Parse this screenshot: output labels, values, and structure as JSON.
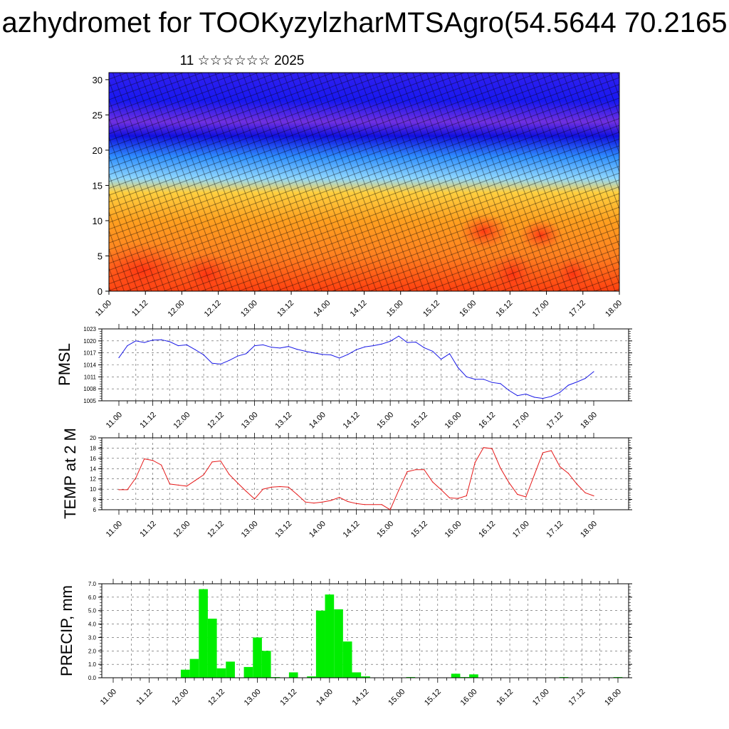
{
  "title": "azhydromet for TOOKyzylzharMTSAgro(54.5644 70.2165",
  "subtitle": "11 ☆☆☆☆☆☆ 2025",
  "colors": {
    "pmsl": "#1a1ae6",
    "temp": "#e61a1a",
    "precip": "#00ee00",
    "grid": "#555555"
  },
  "chart_data": [
    {
      "type": "heatmap",
      "name": "wind-cross-section",
      "y_ticks": [
        "0",
        "5",
        "10",
        "15",
        "20",
        "25",
        "30"
      ],
      "ylim": [
        0,
        31
      ],
      "x_ticks": [
        "11.00",
        "11.12",
        "12.00",
        "12.12",
        "13.00",
        "13.12",
        "14.00",
        "14.12",
        "15.00",
        "15.12",
        "16.00",
        "16.12",
        "17.00",
        "17.12",
        "18.00"
      ],
      "color_by_level": [
        {
          "level": 0,
          "color": "#ff4010"
        },
        {
          "level": 5,
          "color": "#ff8020"
        },
        {
          "level": 10,
          "color": "#ffa020"
        },
        {
          "level": 14,
          "color": "#ffd040"
        },
        {
          "level": 16,
          "color": "#90d8ff"
        },
        {
          "level": 19,
          "color": "#3090ff"
        },
        {
          "level": 22,
          "color": "#1010e0"
        },
        {
          "level": 24,
          "color": "#7030e0"
        },
        {
          "level": 27,
          "color": "#1818f0"
        },
        {
          "level": 31,
          "color": "#3020f0"
        }
      ]
    },
    {
      "type": "line",
      "ylabel": "PMSL",
      "ylim": [
        1005,
        1023
      ],
      "y_ticks": [
        "1005",
        "1008",
        "1011",
        "1014",
        "1017",
        "1020",
        "1023"
      ],
      "x_ticks": [
        "11.00",
        "11.12",
        "12.00",
        "12.12",
        "13.00",
        "13.12",
        "14.00",
        "14.12",
        "15.00",
        "15.12",
        "16.00",
        "16.12",
        "17.00",
        "17.12",
        "18.00"
      ],
      "x_start": 11.0,
      "x_end": 18.0,
      "step_hours": 3,
      "values": [
        1015.8,
        1018.8,
        1020.0,
        1019.6,
        1020.2,
        1020.3,
        1019.8,
        1018.8,
        1019.0,
        1017.8,
        1016.5,
        1014.4,
        1014.2,
        1015.1,
        1016.2,
        1016.8,
        1018.8,
        1019.0,
        1018.4,
        1018.2,
        1018.6,
        1017.9,
        1017.4,
        1017.0,
        1016.6,
        1016.5,
        1015.7,
        1016.6,
        1017.8,
        1018.5,
        1018.8,
        1019.2,
        1019.9,
        1021.2,
        1019.6,
        1019.7,
        1018.3,
        1017.4,
        1015.4,
        1016.8,
        1013.3,
        1011.0,
        1010.4,
        1010.4,
        1009.6,
        1009.3,
        1007.6,
        1006.3,
        1006.7,
        1005.9,
        1005.6,
        1006.1,
        1007.1,
        1008.9,
        1009.7,
        1010.6,
        1012.3
      ]
    },
    {
      "type": "line",
      "ylabel": "TEMP at 2 M",
      "ylim": [
        6,
        20
      ],
      "y_ticks": [
        "6",
        "8",
        "10",
        "12",
        "14",
        "16",
        "18",
        "20"
      ],
      "x_ticks": [
        "11.00",
        "11.12",
        "12.00",
        "12.12",
        "13.00",
        "13.12",
        "14.00",
        "14.12",
        "15.00",
        "15.12",
        "16.00",
        "16.12",
        "17.00",
        "17.12",
        "18.00"
      ],
      "x_start": 11.0,
      "x_end": 18.0,
      "step_hours": 3,
      "values": [
        9.9,
        9.9,
        12.2,
        15.9,
        15.6,
        14.7,
        11.0,
        10.8,
        10.6,
        11.7,
        12.8,
        15.3,
        15.5,
        12.9,
        11.2,
        9.6,
        8.1,
        10.0,
        10.4,
        10.5,
        10.4,
        9.0,
        7.5,
        7.3,
        7.5,
        7.8,
        8.4,
        7.6,
        7.2,
        7.0,
        7.0,
        7.0,
        6.0,
        9.8,
        13.4,
        13.8,
        13.8,
        11.4,
        9.9,
        8.3,
        8.2,
        8.7,
        15.2,
        18.1,
        17.9,
        14.1,
        11.3,
        9.0,
        8.5,
        12.8,
        17.1,
        17.5,
        14.4,
        13.1,
        11.0,
        9.3,
        8.7
      ]
    },
    {
      "type": "bar",
      "ylabel": "PRECIP, mm",
      "ylim": [
        0,
        7
      ],
      "y_ticks": [
        "0.0",
        "1.0",
        "2.0",
        "3.0",
        "4.0",
        "5.0",
        "6.0",
        "7.0"
      ],
      "x_ticks": [
        "11.00",
        "11.12",
        "12.00",
        "12.12",
        "13.00",
        "13.12",
        "14.00",
        "14.12",
        "15.00",
        "15.12",
        "16.00",
        "16.12",
        "17.00",
        "17.12",
        "18.00"
      ],
      "x_start": 11.0,
      "x_end": 18.0,
      "step_hours": 3,
      "values": [
        0,
        0,
        0,
        0,
        0,
        0,
        0,
        0,
        0.6,
        1.4,
        6.6,
        4.4,
        0.7,
        1.2,
        0,
        0.8,
        3.0,
        2.0,
        0.05,
        0,
        0.4,
        0,
        0.1,
        5.0,
        6.2,
        5.1,
        2.7,
        0.4,
        0.1,
        0,
        0,
        0,
        0,
        0.05,
        0,
        0,
        0,
        0,
        0.3,
        0.05,
        0.25,
        0,
        0,
        0,
        0,
        0,
        0,
        0,
        0,
        0,
        0.05,
        0,
        0,
        0,
        0,
        0,
        0.05
      ]
    }
  ]
}
